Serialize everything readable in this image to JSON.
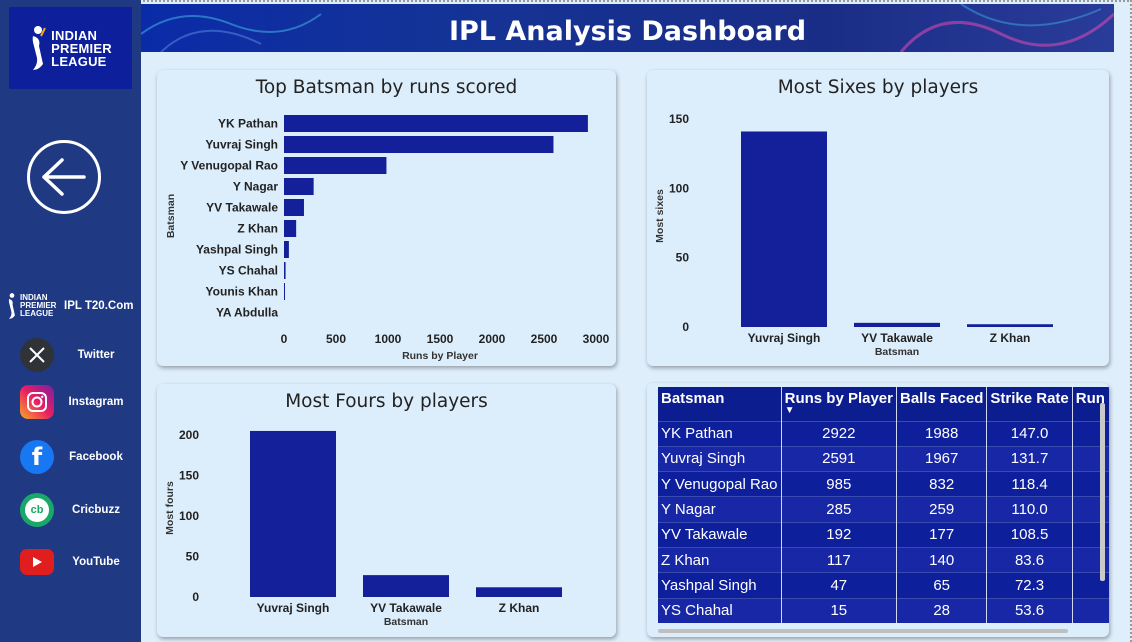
{
  "sidebar": {
    "logo_text": [
      "INDIAN",
      "PREMIER",
      "LEAGUE"
    ],
    "links": [
      {
        "label": "IPL T20.Com",
        "icon": "ipl-logo-icon"
      },
      {
        "label": "Twitter",
        "icon": "x-icon"
      },
      {
        "label": "Instagram",
        "icon": "instagram-icon"
      },
      {
        "label": "Facebook",
        "icon": "facebook-icon"
      },
      {
        "label": "Cricbuzz",
        "icon": "cricbuzz-icon"
      },
      {
        "label": "YouTube",
        "icon": "youtube-icon"
      }
    ],
    "small_logo_text": [
      "INDIAN",
      "PREMIER",
      "LEAGUE"
    ]
  },
  "header": {
    "title": "IPL Analysis Dashboard"
  },
  "colors": {
    "bar": "#13209a",
    "sidebar": "#1f3a83",
    "header": "#0a2ba8"
  },
  "chart_data": [
    {
      "id": "top-batsman",
      "type": "bar",
      "orientation": "horizontal",
      "title": "Top Batsman by runs scored",
      "xlabel": "Runs by Player",
      "ylabel": "Batsman",
      "categories": [
        "YK Pathan",
        "Yuvraj Singh",
        "Y Venugopal Rao",
        "Y Nagar",
        "YV Takawale",
        "Z Khan",
        "Yashpal Singh",
        "YS Chahal",
        "Younis Khan",
        "YA Abdulla"
      ],
      "values": [
        2922,
        2591,
        985,
        285,
        192,
        117,
        47,
        15,
        5,
        0
      ],
      "xlim": [
        0,
        3000
      ],
      "xticks": [
        "0",
        "500",
        "1000",
        "1500",
        "2000",
        "2500",
        "3000"
      ]
    },
    {
      "id": "most-sixes",
      "type": "bar",
      "title": "Most Sixes by players",
      "xlabel": "Batsman",
      "ylabel": "Most sixes",
      "categories": [
        "Yuvraj Singh",
        "YV Takawale",
        "Z Khan"
      ],
      "values": [
        141,
        3,
        2
      ],
      "ylim": [
        0,
        150
      ],
      "yticks": [
        "0",
        "50",
        "100",
        "150"
      ]
    },
    {
      "id": "most-fours",
      "type": "bar",
      "title": "Most Fours by players",
      "xlabel": "Batsman",
      "ylabel": "Most fours",
      "categories": [
        "Yuvraj Singh",
        "YV Takawale",
        "Z Khan"
      ],
      "values": [
        205,
        27,
        12
      ],
      "ylim": [
        0,
        200
      ],
      "yticks": [
        "0",
        "50",
        "100",
        "150",
        "200"
      ]
    }
  ],
  "table": {
    "columns": [
      "Batsman",
      "Runs by Player",
      "Balls Faced",
      "Strike Rate",
      "Run I"
    ],
    "sort_indicator": "▼",
    "rows": [
      [
        "YK Pathan",
        "2922",
        "1988",
        "147.0",
        ""
      ],
      [
        "Yuvraj Singh",
        "2591",
        "1967",
        "131.7",
        ""
      ],
      [
        "Y Venugopal Rao",
        "985",
        "832",
        "118.4",
        ""
      ],
      [
        "Y Nagar",
        "285",
        "259",
        "110.0",
        ""
      ],
      [
        "YV Takawale",
        "192",
        "177",
        "108.5",
        ""
      ],
      [
        "Z Khan",
        "117",
        "140",
        "83.6",
        ""
      ],
      [
        "Yashpal Singh",
        "47",
        "65",
        "72.3",
        ""
      ],
      [
        "YS Chahal",
        "15",
        "28",
        "53.6",
        ""
      ]
    ]
  }
}
